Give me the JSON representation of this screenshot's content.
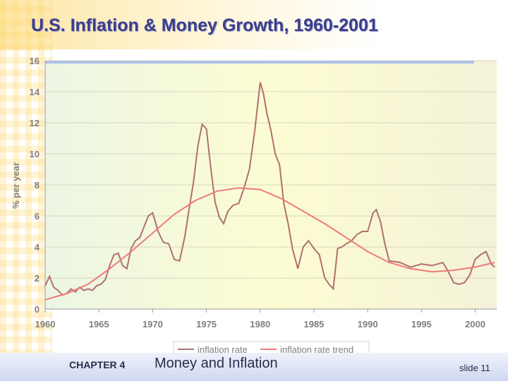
{
  "slide": {
    "title": "U.S. Inflation & Money Growth, 1960-2001",
    "footer_chapter": "CHAPTER 4",
    "footer_topic": "Money and Inflation",
    "footer_slide": "slide 11"
  },
  "chart_data": {
    "type": "line",
    "title": "",
    "xlabel": "",
    "ylabel": "% per year",
    "xlim": [
      1960,
      2002
    ],
    "ylim": [
      0,
      16
    ],
    "x_ticks": [
      1960,
      1965,
      1970,
      1975,
      1980,
      1985,
      1990,
      1995,
      2000
    ],
    "y_ticks": [
      0,
      2,
      4,
      6,
      8,
      10,
      12,
      14,
      16
    ],
    "grid": "horizontal",
    "legend": "bottom",
    "colors": {
      "inflation": "#b07070",
      "trend": "#ee7a7a",
      "plot_bg_left": "#ecf6e4",
      "plot_bg_center": "#fcfcd2",
      "plot_bg_right": "#f4f2d8"
    },
    "series": [
      {
        "name": "inflation rate",
        "x": [
          1960.0,
          1960.4,
          1960.8,
          1961.2,
          1961.6,
          1962.0,
          1962.4,
          1962.8,
          1963.2,
          1963.6,
          1964.0,
          1964.4,
          1964.8,
          1965.2,
          1965.6,
          1966.0,
          1966.4,
          1966.8,
          1967.2,
          1967.6,
          1968.0,
          1968.4,
          1968.8,
          1969.2,
          1969.6,
          1970.0,
          1970.5,
          1971.0,
          1971.5,
          1972.0,
          1972.5,
          1973.0,
          1973.4,
          1973.8,
          1974.2,
          1974.6,
          1975.0,
          1975.4,
          1975.8,
          1976.2,
          1976.6,
          1977.0,
          1977.5,
          1978.0,
          1978.5,
          1979.0,
          1979.5,
          1980.0,
          1980.3,
          1980.6,
          1981.0,
          1981.4,
          1981.8,
          1982.2,
          1982.6,
          1983.0,
          1983.5,
          1984.0,
          1984.5,
          1985.0,
          1985.5,
          1986.0,
          1986.4,
          1986.8,
          1987.2,
          1987.6,
          1988.0,
          1988.5,
          1989.0,
          1989.5,
          1990.0,
          1990.5,
          1990.8,
          1991.2,
          1991.6,
          1992.0,
          1993.0,
          1994.0,
          1995.0,
          1996.0,
          1997.0,
          1997.5,
          1998.0,
          1998.5,
          1999.0,
          1999.5,
          2000.0,
          2000.5,
          2001.0,
          2001.5,
          2001.8
        ],
        "y": [
          1.5,
          2.1,
          1.4,
          1.2,
          0.9,
          1.0,
          1.3,
          1.1,
          1.4,
          1.2,
          1.3,
          1.2,
          1.5,
          1.6,
          1.9,
          2.8,
          3.5,
          3.6,
          2.8,
          2.6,
          3.9,
          4.4,
          4.6,
          5.3,
          6.0,
          6.2,
          5.0,
          4.3,
          4.2,
          3.2,
          3.1,
          4.7,
          6.5,
          8.2,
          10.5,
          11.9,
          11.6,
          9.1,
          6.9,
          5.9,
          5.5,
          6.3,
          6.7,
          6.8,
          7.8,
          9.0,
          11.5,
          14.6,
          13.9,
          12.7,
          11.5,
          10.0,
          9.3,
          6.8,
          5.5,
          3.9,
          2.6,
          4.0,
          4.4,
          3.9,
          3.5,
          2.0,
          1.6,
          1.3,
          3.9,
          4.0,
          4.2,
          4.4,
          4.8,
          5.0,
          5.0,
          6.2,
          6.4,
          5.6,
          4.2,
          3.1,
          3.0,
          2.7,
          2.9,
          2.8,
          3.0,
          2.4,
          1.7,
          1.6,
          1.7,
          2.2,
          3.2,
          3.5,
          3.7,
          2.9,
          2.7
        ]
      },
      {
        "name": "inflation rate trend",
        "x": [
          1960,
          1962,
          1964,
          1966,
          1968,
          1970,
          1972,
          1974,
          1976,
          1978,
          1980,
          1982,
          1984,
          1986,
          1988,
          1990,
          1992,
          1994,
          1996,
          1998,
          2000,
          2001.8
        ],
        "y": [
          0.6,
          1.0,
          1.6,
          2.6,
          3.7,
          4.9,
          6.1,
          7.0,
          7.6,
          7.8,
          7.7,
          7.1,
          6.3,
          5.5,
          4.6,
          3.7,
          3.0,
          2.6,
          2.4,
          2.5,
          2.7,
          3.0
        ]
      }
    ]
  }
}
